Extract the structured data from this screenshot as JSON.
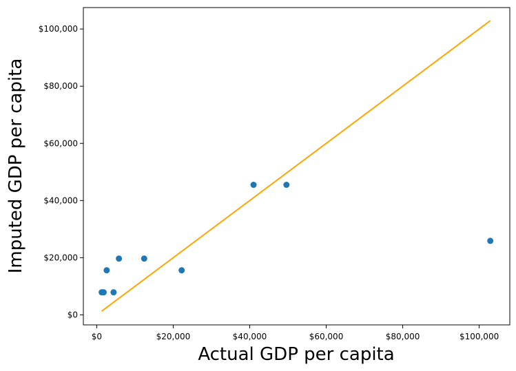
{
  "chart_data": {
    "type": "scatter",
    "title": "",
    "xlabel": "Actual GDP per capita",
    "ylabel": "Imputed GDP per capita",
    "xlim": [
      -3500,
      108000
    ],
    "ylim": [
      -3500,
      107500
    ],
    "xticks": [
      0,
      20000,
      40000,
      60000,
      80000,
      100000
    ],
    "xtick_labels": [
      "$0",
      "$20,000",
      "$40,000",
      "$60,000",
      "$80,000",
      "$100,000"
    ],
    "yticks": [
      0,
      20000,
      40000,
      60000,
      80000,
      100000
    ],
    "ytick_labels": [
      "$0",
      "$20,000",
      "$40,000",
      "$60,000",
      "$80,000",
      "$100,000"
    ],
    "grid": false,
    "legend": "none",
    "series": [
      {
        "kind": "scatter",
        "color": "#1f77b4",
        "points": [
          {
            "x": 1300,
            "y": 7900
          },
          {
            "x": 1800,
            "y": 7900
          },
          {
            "x": 2600,
            "y": 15600
          },
          {
            "x": 4400,
            "y": 7900
          },
          {
            "x": 5800,
            "y": 19700
          },
          {
            "x": 12400,
            "y": 19700
          },
          {
            "x": 22200,
            "y": 15600
          },
          {
            "x": 41000,
            "y": 45500
          },
          {
            "x": 49600,
            "y": 45500
          },
          {
            "x": 102900,
            "y": 25900
          }
        ]
      },
      {
        "kind": "line",
        "color": "#ffa500",
        "points": [
          {
            "x": 1300,
            "y": 1300
          },
          {
            "x": 102900,
            "y": 102900
          }
        ]
      }
    ]
  }
}
